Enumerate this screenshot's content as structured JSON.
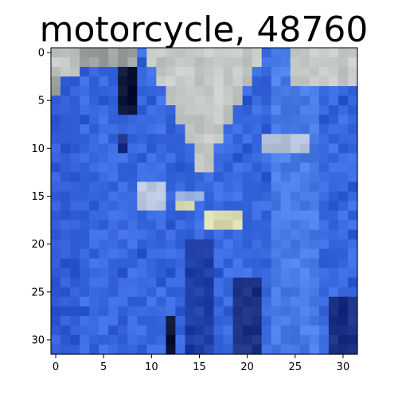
{
  "title": "motorcycle, 48760",
  "image": {
    "rows": 32,
    "cols": 32,
    "palette": {
      "sky": "#c4c8c4",
      "skyDark": "#9aa09c",
      "fabricA": "#3a6ae0",
      "fabricB": "#2f5bd4",
      "fabricC": "#4a7ce8",
      "fabricDark": "#1f3fa8",
      "fabricDeep": "#182f82",
      "navy": "#0c1438",
      "light": "#b6c4dc",
      "lightYellow": "#d8dcb0",
      "patch": "#8fa8d8"
    }
  },
  "axes": {
    "x_ticks": [
      0,
      5,
      10,
      15,
      20,
      25,
      30
    ],
    "y_ticks": [
      0,
      5,
      10,
      15,
      20,
      25,
      30
    ]
  }
}
